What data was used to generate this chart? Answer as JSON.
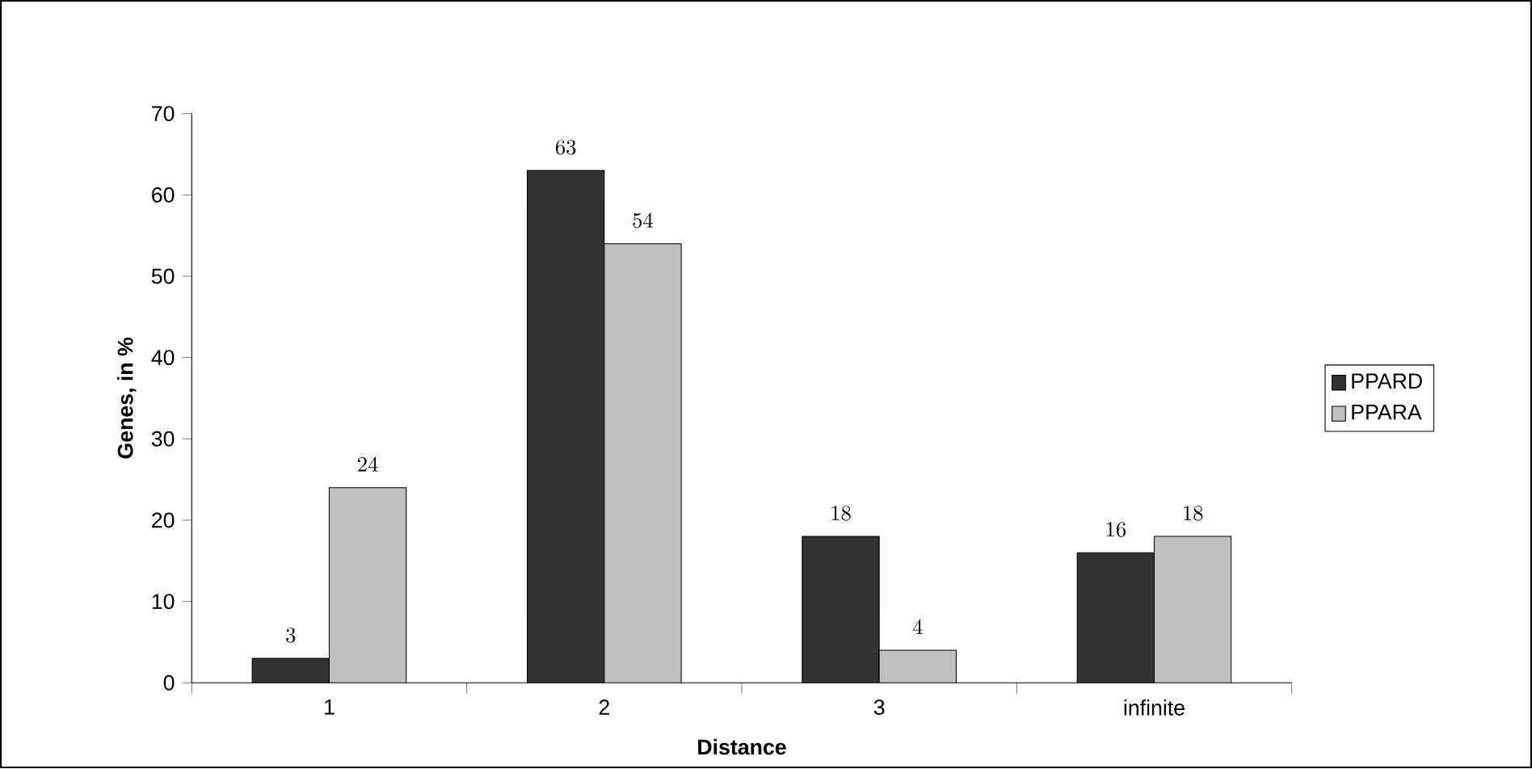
{
  "chart_data": {
    "type": "bar",
    "xlabel": "Distance",
    "ylabel": "Genes, in %",
    "categories": [
      "1",
      "2",
      "3",
      "infinite"
    ],
    "series": [
      {
        "name": "PPARD",
        "color": "#333333",
        "values": [
          3,
          63,
          18,
          16
        ]
      },
      {
        "name": "PPARA",
        "color": "#c0c0c0",
        "values": [
          24,
          54,
          4,
          18
        ]
      }
    ],
    "ylim": [
      0,
      70
    ],
    "yticks": [
      0,
      10,
      20,
      30,
      40,
      50,
      60,
      70
    ],
    "data_labels": true,
    "grid": false,
    "legend": "right"
  }
}
